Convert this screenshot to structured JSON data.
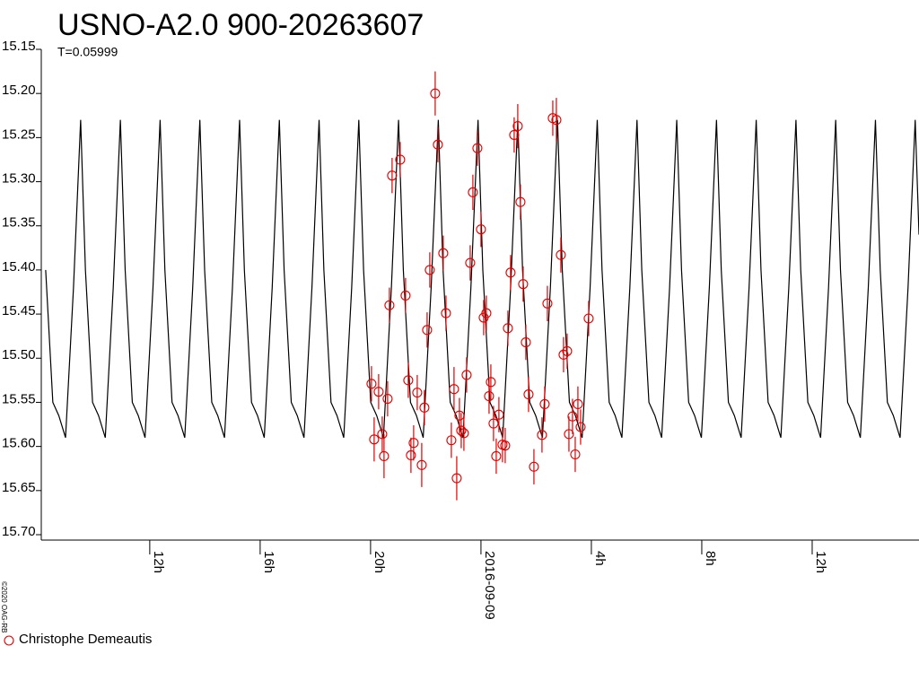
{
  "chart_data": {
    "type": "scatter",
    "title": "USNO-A2.0 900-20263607",
    "subtitle": "T=0.05999",
    "credit": "©2020 OAG-RB",
    "ylim": [
      15.7,
      15.15
    ],
    "yticks": [
      15.15,
      {
        "value": 15.2,
        "label": "15.20"
      },
      15.25,
      {
        "value": 15.3,
        "label": "15.30"
      },
      15.35,
      {
        "value": 15.4,
        "label": "15.40"
      },
      15.45,
      {
        "value": 15.5,
        "label": "15.50"
      },
      15.55,
      {
        "value": 15.6,
        "label": "15.60"
      },
      15.65,
      {
        "value": 15.7,
        "label": "15.70"
      }
    ],
    "xlim": [
      -15.93,
      15.87
    ],
    "xticks": [
      {
        "value": -12,
        "label": "12h"
      },
      {
        "value": -8,
        "label": "16h"
      },
      {
        "value": -4,
        "label": "20h"
      },
      {
        "value": 0,
        "label": "2016-09-09"
      },
      {
        "value": 4,
        "label": "4h"
      },
      {
        "value": 8,
        "label": "8h"
      },
      {
        "value": 12,
        "label": "12h"
      }
    ],
    "series": [
      {
        "name": "Christophe Demeautis",
        "color": "#e00000",
        "x": [
          -3.967,
          -3.87,
          -3.707,
          -3.577,
          -3.512,
          -3.382,
          -3.317,
          -3.22,
          -2.927,
          -2.732,
          -2.634,
          -2.537,
          -2.439,
          -2.309,
          -2.146,
          -2.049,
          -1.951,
          -1.854,
          -1.659,
          -1.561,
          -1.366,
          -1.268,
          -1.073,
          -0.976,
          -0.878,
          -0.78,
          -0.715,
          -0.618,
          -0.52,
          -0.39,
          -0.293,
          -0.13,
          0,
          0.098,
          0.195,
          0.293,
          0.358,
          0.455,
          0.553,
          0.65,
          0.78,
          0.878,
          0.976,
          1.073,
          1.203,
          1.333,
          1.431,
          1.528,
          1.626,
          1.724,
          1.919,
          2.211,
          2.309,
          2.407,
          2.602,
          2.732,
          2.894,
          2.992,
          3.122,
          3.187,
          3.317,
          3.415,
          3.512,
          3.61,
          3.902
        ],
        "values": [
          15.529,
          15.592,
          15.538,
          15.586,
          15.611,
          15.546,
          15.44,
          15.293,
          15.275,
          15.429,
          15.525,
          15.61,
          15.596,
          15.539,
          15.621,
          15.556,
          15.468,
          15.4,
          15.2,
          15.258,
          15.381,
          15.449,
          15.593,
          15.535,
          15.636,
          15.565,
          15.582,
          15.585,
          15.519,
          15.392,
          15.312,
          15.262,
          15.354,
          15.454,
          15.449,
          15.543,
          15.527,
          15.574,
          15.611,
          15.564,
          15.598,
          15.599,
          15.466,
          15.403,
          15.247,
          15.237,
          15.323,
          15.416,
          15.482,
          15.541,
          15.623,
          15.587,
          15.552,
          15.438,
          15.228,
          15.23,
          15.383,
          15.496,
          15.492,
          15.586,
          15.566,
          15.609,
          15.552,
          15.578,
          15.455
        ],
        "errors": [
          0.02,
          0.025,
          0.02,
          0.02,
          0.025,
          0.02,
          0.02,
          0.02,
          0.02,
          0.02,
          0.02,
          0.02,
          0.02,
          0.02,
          0.025,
          0.02,
          0.02,
          0.02,
          0.025,
          0.02,
          0.02,
          0.02,
          0.02,
          0.025,
          0.025,
          0.02,
          0.02,
          0.02,
          0.02,
          0.02,
          0.02,
          0.02,
          0.02,
          0.02,
          0.02,
          0.02,
          0.02,
          0.02,
          0.02,
          0.02,
          0.02,
          0.02,
          0.02,
          0.02,
          0.02,
          0.025,
          0.02,
          0.02,
          0.02,
          0.02,
          0.02,
          0.02,
          0.02,
          0.02,
          0.02,
          0.025,
          0.02,
          0.02,
          0.02,
          0.02,
          0.02,
          0.02,
          0.02,
          0.02,
          0.02
        ]
      }
    ],
    "curve": {
      "color": "#000000",
      "x": [
        -15.771,
        -15.512,
        -15.296,
        -15.051,
        -14.763,
        -14.504,
        -14.331,
        -14.072,
        -13.856,
        -13.611,
        -13.323,
        -13.064,
        -12.891,
        -12.632,
        -12.416,
        -12.171,
        -11.883,
        -11.625,
        -11.452,
        -11.193,
        -10.977,
        -10.732,
        -10.444,
        -10.185,
        -10.012,
        -9.753,
        -9.537,
        -9.292,
        -9.004,
        -8.745,
        -8.572,
        -8.313,
        -8.097,
        -7.852,
        -7.564,
        -7.305,
        -7.132,
        -6.873,
        -6.657,
        -6.412,
        -6.124,
        -5.865,
        -5.692,
        -5.433,
        -5.217,
        -4.972,
        -4.684,
        -4.426,
        -4.253,
        -3.994,
        -3.778,
        -3.533,
        -3.245,
        -2.986,
        -2.813,
        -2.554,
        -2.338,
        -2.093,
        -1.805,
        -1.546,
        -1.373,
        -1.114,
        -0.898,
        -0.653,
        -0.365,
        -0.106,
        0.067,
        0.326,
        0.542,
        0.787,
        1.075,
        1.334,
        1.507,
        1.766,
        1.982,
        2.227,
        2.515,
        2.773,
        2.946,
        3.205,
        3.421,
        3.666,
        3.954,
        4.213,
        4.386,
        4.645,
        4.861,
        5.106,
        5.394,
        5.653,
        5.826,
        6.085,
        6.301,
        6.546,
        6.834,
        7.093,
        7.266,
        7.525,
        7.741,
        7.986,
        8.274,
        8.533,
        8.706,
        8.965,
        9.181,
        9.426,
        9.714,
        9.972,
        10.145,
        10.404,
        10.62,
        10.865,
        11.153,
        11.412,
        11.585,
        11.844,
        12.06,
        12.305,
        12.593,
        12.852,
        13.025,
        13.284,
        13.5,
        13.745,
        14.033,
        14.292,
        14.465,
        14.724,
        14.94,
        15.185,
        15.473,
        15.732,
        15.87
      ],
      "values": [
        15.4,
        15.55,
        15.565,
        15.59,
        15.42,
        15.23,
        15.4,
        15.55,
        15.565,
        15.59,
        15.42,
        15.23,
        15.4,
        15.55,
        15.565,
        15.59,
        15.42,
        15.23,
        15.4,
        15.55,
        15.565,
        15.59,
        15.42,
        15.23,
        15.4,
        15.55,
        15.565,
        15.59,
        15.42,
        15.23,
        15.4,
        15.55,
        15.565,
        15.59,
        15.42,
        15.23,
        15.4,
        15.55,
        15.565,
        15.59,
        15.42,
        15.23,
        15.4,
        15.55,
        15.565,
        15.59,
        15.42,
        15.23,
        15.4,
        15.55,
        15.565,
        15.59,
        15.42,
        15.23,
        15.4,
        15.55,
        15.565,
        15.59,
        15.42,
        15.23,
        15.4,
        15.55,
        15.565,
        15.59,
        15.42,
        15.23,
        15.4,
        15.55,
        15.565,
        15.59,
        15.42,
        15.23,
        15.4,
        15.55,
        15.565,
        15.59,
        15.42,
        15.23,
        15.4,
        15.55,
        15.565,
        15.59,
        15.42,
        15.23,
        15.4,
        15.55,
        15.565,
        15.59,
        15.42,
        15.23,
        15.4,
        15.55,
        15.565,
        15.59,
        15.42,
        15.23,
        15.4,
        15.55,
        15.565,
        15.59,
        15.42,
        15.23,
        15.4,
        15.55,
        15.565,
        15.59,
        15.42,
        15.23,
        15.4,
        15.55,
        15.565,
        15.59,
        15.42,
        15.23,
        15.4,
        15.55,
        15.565,
        15.59,
        15.42,
        15.23,
        15.4,
        15.55,
        15.565,
        15.59,
        15.42,
        15.23,
        15.4,
        15.55,
        15.565,
        15.59,
        15.42,
        15.23,
        15.36
      ]
    }
  }
}
